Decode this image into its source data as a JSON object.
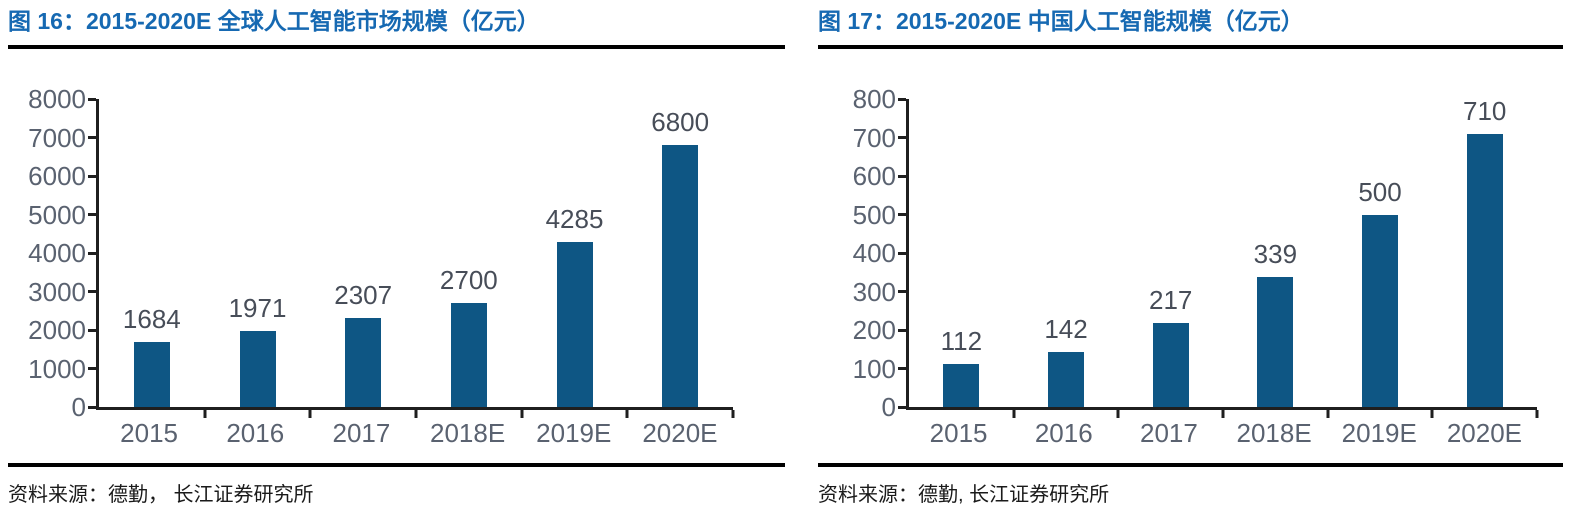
{
  "page_background": "#FFFFFF",
  "colors": {
    "bar": "#0E5684",
    "title": "#1669B2",
    "axis_line": "#1F1F1F",
    "axis_label": "#5A6270",
    "value_label": "#474D58",
    "rule": "#000000",
    "source_text": "#1A1A1A"
  },
  "panels": [
    {
      "title": "图 16：2015-2020E 全球人工智能市场规模（亿元）",
      "source": "资料来源：德勤， 长江证券研究所"
    },
    {
      "title": "图 17：2015-2020E 中国人工智能规模（亿元）",
      "source": "资料来源：德勤, 长江证券研究所"
    }
  ],
  "chart_data": [
    {
      "type": "bar",
      "title": "2015-2020E 全球人工智能市场规模（亿元）",
      "categories": [
        "2015",
        "2016",
        "2017",
        "2018E",
        "2019E",
        "2020E"
      ],
      "values": [
        1684,
        1971,
        2307,
        2700,
        4285,
        6800
      ],
      "xlabel": "",
      "ylabel": "",
      "ylim": [
        0,
        8000
      ],
      "ytick_step": 1000,
      "yticks": [
        0,
        1000,
        2000,
        3000,
        4000,
        5000,
        6000,
        7000,
        8000
      ],
      "grid": false,
      "legend": "none",
      "data_labels": true,
      "bar_color": "#0E5684"
    },
    {
      "type": "bar",
      "title": "2015-2020E 中国人工智能规模（亿元）",
      "categories": [
        "2015",
        "2016",
        "2017",
        "2018E",
        "2019E",
        "2020E"
      ],
      "values": [
        112,
        142,
        217,
        339,
        500,
        710
      ],
      "xlabel": "",
      "ylabel": "",
      "ylim": [
        0,
        800
      ],
      "ytick_step": 100,
      "yticks": [
        0,
        100,
        200,
        300,
        400,
        500,
        600,
        700,
        800
      ],
      "grid": false,
      "legend": "none",
      "data_labels": true,
      "bar_color": "#0E5684"
    }
  ]
}
